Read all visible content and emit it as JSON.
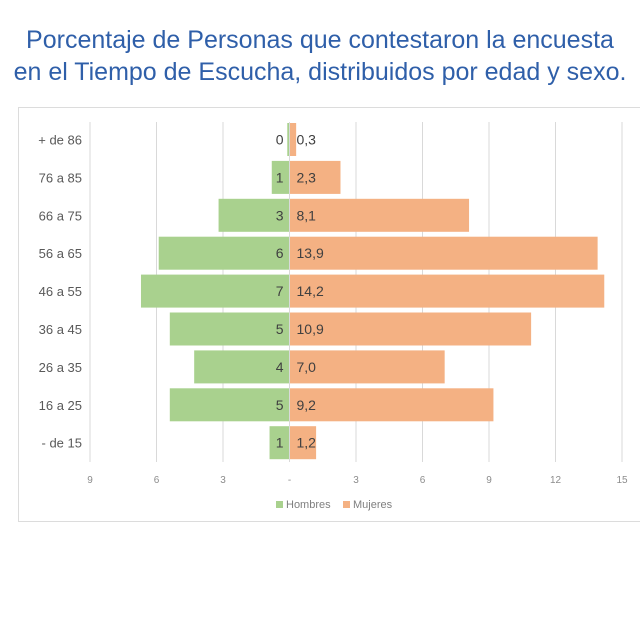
{
  "title_lines": [
    "Porcentaje de Personas que contestaron la encuesta",
    "en el Tiempo de Escucha, distribuidos por edad y sexo."
  ],
  "chart_data": {
    "type": "bar",
    "orientation": "horizontal-pyramid",
    "title": "Porcentaje de Personas que contestaron la encuesta en el Tiempo de Escucha, distribuidos por edad y sexo.",
    "categories": [
      "+ de 86",
      "76 a 85",
      "66 a 75",
      "56 a 65",
      "46 a 55",
      "36 a 45",
      "26 a 35",
      "16 a 25",
      "- de 15"
    ],
    "series": [
      {
        "name": "Hombres",
        "color": "#a9d18e",
        "side": "left",
        "values": [
          0.1,
          0.8,
          3.2,
          5.9,
          6.7,
          5.4,
          4.3,
          5.4,
          0.9
        ],
        "labels": [
          "0",
          "1",
          "3",
          "6",
          "7",
          "5",
          "4",
          "5",
          "1"
        ]
      },
      {
        "name": "Mujeres",
        "color": "#f4b183",
        "side": "right",
        "values": [
          0.3,
          2.3,
          8.1,
          13.9,
          14.2,
          10.9,
          7.0,
          9.2,
          1.2
        ],
        "labels": [
          "0,3",
          "2,3",
          "8,1",
          "13,9",
          "14,2",
          "10,9",
          "7,0",
          "9,2",
          "1,2"
        ]
      }
    ],
    "xlim": [
      -9,
      15
    ],
    "x_ticks": [
      -9,
      -6,
      -3,
      0,
      3,
      6,
      9,
      12,
      15
    ],
    "x_tick_labels": [
      "9",
      "6",
      "3",
      "-",
      "3",
      "6",
      "9",
      "12",
      "15"
    ],
    "grid": true,
    "legend": "bottom"
  }
}
